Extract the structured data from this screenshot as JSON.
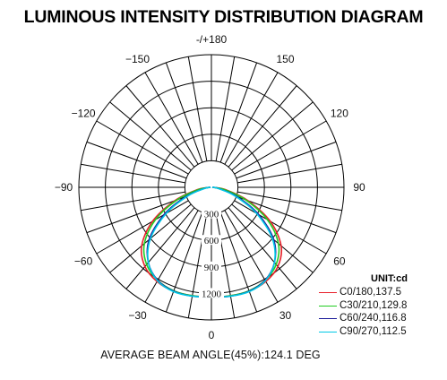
{
  "chart_data": {
    "type": "polar-line",
    "title": "LUMINOUS INTENSITY DISTRIBUTION DIAGRAM",
    "unit_label": "UNIT:cd",
    "footer": "AVERAGE BEAM ANGLE(45%):124.1 DEG",
    "angle_ticks": [
      {
        "angle": 180,
        "label": "-/+180"
      },
      {
        "angle": 150,
        "label": "150"
      },
      {
        "angle": -150,
        "label": "−150"
      },
      {
        "angle": 120,
        "label": "120"
      },
      {
        "angle": -120,
        "label": "−120"
      },
      {
        "angle": 90,
        "label": "90"
      },
      {
        "angle": -90,
        "label": "−90"
      },
      {
        "angle": 60,
        "label": "60"
      },
      {
        "angle": -60,
        "label": "−60"
      },
      {
        "angle": 30,
        "label": "30"
      },
      {
        "angle": -30,
        "label": "−30"
      },
      {
        "angle": 0,
        "label": "0"
      }
    ],
    "radial_range": [
      0,
      1500
    ],
    "radial_ticks": [
      300,
      600,
      900,
      1200
    ],
    "radial_grid": [
      300,
      600,
      900,
      1200,
      1500
    ],
    "angular_grid_step_deg": 10,
    "series": [
      {
        "name": "C0/180,137.5",
        "color": "#e8202a",
        "points": [
          [
            -90,
            20
          ],
          [
            -80,
            170
          ],
          [
            -70,
            440
          ],
          [
            -60,
            770
          ],
          [
            -50,
            1030
          ],
          [
            -40,
            1170
          ],
          [
            -30,
            1230
          ],
          [
            -20,
            1250
          ],
          [
            -10,
            1245
          ],
          [
            0,
            1240
          ],
          [
            10,
            1245
          ],
          [
            20,
            1250
          ],
          [
            30,
            1230
          ],
          [
            40,
            1170
          ],
          [
            50,
            1030
          ],
          [
            60,
            770
          ],
          [
            70,
            440
          ],
          [
            80,
            170
          ],
          [
            90,
            20
          ]
        ]
      },
      {
        "name": "C30/210,129.8",
        "color": "#22cc22",
        "points": [
          [
            -90,
            15
          ],
          [
            -80,
            150
          ],
          [
            -70,
            410
          ],
          [
            -60,
            730
          ],
          [
            -50,
            990
          ],
          [
            -40,
            1140
          ],
          [
            -30,
            1215
          ],
          [
            -20,
            1245
          ],
          [
            -10,
            1245
          ],
          [
            0,
            1240
          ],
          [
            10,
            1245
          ],
          [
            20,
            1245
          ],
          [
            30,
            1215
          ],
          [
            40,
            1140
          ],
          [
            50,
            990
          ],
          [
            60,
            730
          ],
          [
            70,
            410
          ],
          [
            80,
            150
          ],
          [
            90,
            15
          ]
        ]
      },
      {
        "name": "C60/240,116.8",
        "color": "#1a1a99",
        "points": [
          [
            -90,
            10
          ],
          [
            -80,
            90
          ],
          [
            -70,
            310
          ],
          [
            -60,
            620
          ],
          [
            -50,
            920
          ],
          [
            -40,
            1110
          ],
          [
            -30,
            1215
          ],
          [
            -20,
            1250
          ],
          [
            -10,
            1250
          ],
          [
            0,
            1240
          ],
          [
            10,
            1250
          ],
          [
            20,
            1250
          ],
          [
            30,
            1215
          ],
          [
            40,
            1110
          ],
          [
            50,
            920
          ],
          [
            60,
            620
          ],
          [
            70,
            310
          ],
          [
            80,
            90
          ],
          [
            90,
            10
          ]
        ]
      },
      {
        "name": "C90/270,112.5",
        "color": "#00c8e6",
        "points": [
          [
            -90,
            10
          ],
          [
            -80,
            80
          ],
          [
            -70,
            280
          ],
          [
            -60,
            590
          ],
          [
            -50,
            900
          ],
          [
            -40,
            1110
          ],
          [
            -30,
            1220
          ],
          [
            -20,
            1255
          ],
          [
            -10,
            1250
          ],
          [
            0,
            1240
          ],
          [
            10,
            1250
          ],
          [
            20,
            1255
          ],
          [
            30,
            1220
          ],
          [
            40,
            1110
          ],
          [
            50,
            900
          ],
          [
            60,
            590
          ],
          [
            70,
            280
          ],
          [
            80,
            80
          ],
          [
            90,
            10
          ]
        ]
      }
    ]
  }
}
